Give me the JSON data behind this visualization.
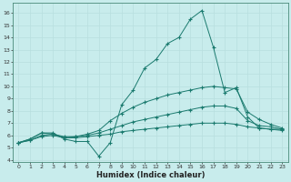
{
  "title": "",
  "xlabel": "Humidex (Indice chaleur)",
  "bg_color": "#c8ecec",
  "grid_color": "#aad8d8",
  "line_color": "#1a7a6e",
  "xlim": [
    -0.5,
    23.5
  ],
  "ylim": [
    3.8,
    16.8
  ],
  "xticks": [
    0,
    1,
    2,
    3,
    4,
    5,
    6,
    7,
    8,
    9,
    10,
    11,
    12,
    13,
    14,
    15,
    16,
    17,
    18,
    19,
    20,
    21,
    22,
    23
  ],
  "yticks": [
    4,
    5,
    6,
    7,
    8,
    9,
    10,
    11,
    12,
    13,
    14,
    15,
    16
  ],
  "line1_y": [
    5.4,
    5.7,
    6.2,
    6.2,
    5.7,
    5.5,
    5.5,
    4.3,
    5.4,
    8.5,
    9.7,
    11.5,
    12.2,
    13.5,
    14.0,
    15.5,
    16.2,
    13.2,
    9.5,
    9.9,
    7.5,
    6.6,
    6.5,
    6.5
  ],
  "line2_y": [
    5.4,
    5.7,
    6.2,
    6.1,
    5.8,
    5.9,
    6.1,
    6.4,
    7.2,
    7.8,
    8.3,
    8.7,
    9.0,
    9.3,
    9.5,
    9.7,
    9.9,
    10.0,
    9.9,
    9.8,
    7.9,
    7.3,
    6.9,
    6.6
  ],
  "line3_y": [
    5.4,
    5.6,
    6.0,
    6.1,
    5.9,
    5.9,
    6.0,
    6.2,
    6.5,
    6.8,
    7.1,
    7.3,
    7.5,
    7.7,
    7.9,
    8.1,
    8.3,
    8.4,
    8.4,
    8.2,
    7.2,
    6.8,
    6.7,
    6.5
  ],
  "line4_y": [
    5.4,
    5.6,
    5.9,
    6.0,
    5.8,
    5.8,
    5.9,
    6.0,
    6.1,
    6.3,
    6.4,
    6.5,
    6.6,
    6.7,
    6.8,
    6.9,
    7.0,
    7.0,
    7.0,
    6.9,
    6.7,
    6.6,
    6.5,
    6.4
  ]
}
